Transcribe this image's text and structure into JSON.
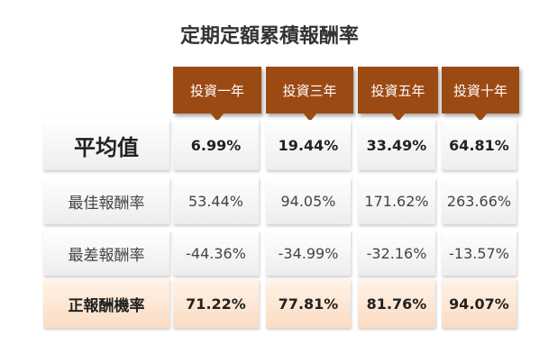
{
  "title": "定期定額累積報酬率",
  "table": {
    "columns": [
      "投資一年",
      "投資三年",
      "投資五年",
      "投資十年"
    ],
    "rows": [
      {
        "label": "平均值",
        "cells": [
          "6.99%",
          "19.44%",
          "33.49%",
          "64.81%"
        ]
      },
      {
        "label": "最佳報酬率",
        "cells": [
          "53.44%",
          "94.05%",
          "171.62%",
          "263.66%"
        ]
      },
      {
        "label": "最差報酬率",
        "cells": [
          "-44.36%",
          "-34.99%",
          "-32.16%",
          "-13.57%"
        ]
      },
      {
        "label": "正報酬機率",
        "cells": [
          "71.22%",
          "77.81%",
          "81.76%",
          "94.07%"
        ]
      }
    ]
  }
}
